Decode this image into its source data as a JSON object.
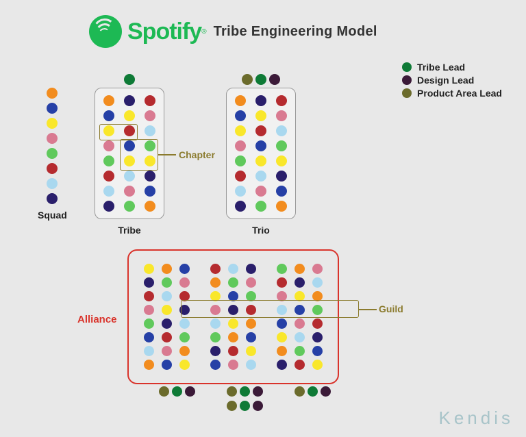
{
  "colors": {
    "orange": "#f28c1e",
    "blue": "#2640a6",
    "yellow": "#f9e72b",
    "pink": "#d97a91",
    "green": "#60c95c",
    "red": "#b52b2f",
    "lightblue": "#a9d8ef",
    "navy": "#2a1f6b",
    "olive": "#6b6b2c",
    "darkgreen": "#0e7a36",
    "maroon": "#3b1a38",
    "bg": "#e8e8e8",
    "panel": "#f1f1f1",
    "border": "#999999",
    "chapter": "#8b7b2e",
    "alliance": "#d9332b",
    "spotify": "#1db954",
    "text": "#222222",
    "watermark": "#a8c4c9"
  },
  "brand": {
    "name": "Spotify",
    "reg": "®"
  },
  "title": "Tribe Engineering Model",
  "legend": [
    {
      "color": "darkgreen",
      "label": "Tribe Lead"
    },
    {
      "color": "maroon",
      "label": "Design Lead"
    },
    {
      "color": "olive",
      "label": "Product Area Lead"
    }
  ],
  "labels": {
    "squad": "Squad",
    "tribe": "Tribe",
    "trio": "Trio",
    "chapter": "Chapter",
    "alliance": "Alliance",
    "guild": "Guild"
  },
  "squad": [
    "orange",
    "blue",
    "yellow",
    "pink",
    "green",
    "red",
    "lightblue",
    "navy"
  ],
  "tribe": {
    "lead": [
      "darkgreen"
    ],
    "cols": [
      [
        "orange",
        "blue",
        "yellow",
        "pink",
        "green",
        "red",
        "lightblue",
        "navy"
      ],
      [
        "navy",
        "yellow",
        "red",
        "blue",
        "yellow",
        "lightblue",
        "pink",
        "green"
      ],
      [
        "red",
        "pink",
        "lightblue",
        "green",
        "yellow",
        "navy",
        "blue",
        "orange"
      ]
    ]
  },
  "trio": {
    "lead": [
      "olive",
      "darkgreen",
      "maroon"
    ],
    "cols": [
      [
        "orange",
        "blue",
        "yellow",
        "pink",
        "green",
        "red",
        "lightblue",
        "navy"
      ],
      [
        "navy",
        "yellow",
        "red",
        "blue",
        "yellow",
        "lightblue",
        "pink",
        "green"
      ],
      [
        "red",
        "pink",
        "lightblue",
        "green",
        "yellow",
        "navy",
        "blue",
        "orange"
      ]
    ]
  },
  "alliance": {
    "units": [
      [
        [
          "yellow",
          "navy",
          "red",
          "pink",
          "green",
          "blue",
          "lightblue",
          "orange"
        ],
        [
          "orange",
          "green",
          "lightblue",
          "yellow",
          "navy",
          "red",
          "pink",
          "blue"
        ],
        [
          "blue",
          "pink",
          "red",
          "navy",
          "lightblue",
          "green",
          "orange",
          "yellow"
        ]
      ],
      [
        [
          "red",
          "orange",
          "yellow",
          "pink",
          "lightblue",
          "green",
          "navy",
          "blue"
        ],
        [
          "lightblue",
          "green",
          "blue",
          "navy",
          "yellow",
          "orange",
          "red",
          "pink"
        ],
        [
          "navy",
          "pink",
          "green",
          "red",
          "orange",
          "blue",
          "yellow",
          "lightblue"
        ]
      ],
      [
        [
          "green",
          "red",
          "pink",
          "lightblue",
          "blue",
          "yellow",
          "orange",
          "navy"
        ],
        [
          "orange",
          "navy",
          "yellow",
          "blue",
          "pink",
          "lightblue",
          "green",
          "red"
        ],
        [
          "pink",
          "lightblue",
          "orange",
          "green",
          "red",
          "navy",
          "blue",
          "yellow"
        ]
      ]
    ],
    "bottomLeads": [
      [
        "olive",
        "darkgreen",
        "maroon"
      ],
      [
        "olive",
        "darkgreen",
        "maroon"
      ],
      [
        "olive",
        "darkgreen",
        "maroon"
      ]
    ],
    "grandLeads": [
      "olive",
      "darkgreen",
      "maroon"
    ]
  },
  "watermark": "Kendis",
  "dot_size_main": 16,
  "dot_size_small": 16,
  "unit_border_radius": 10
}
